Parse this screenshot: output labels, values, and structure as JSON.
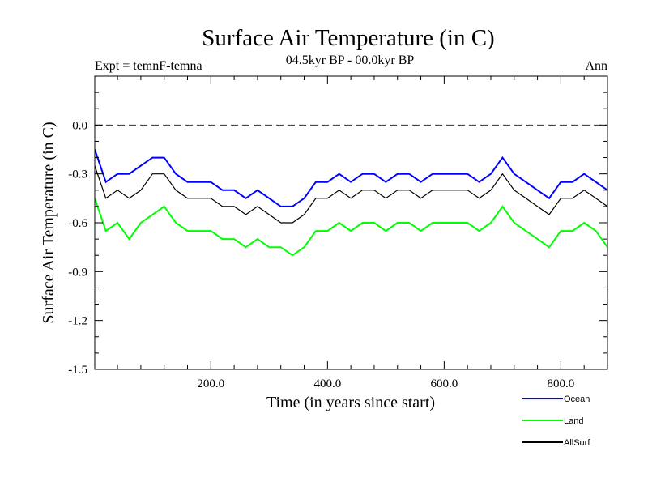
{
  "chart_data": {
    "type": "line",
    "title": "Surface Air Temperature (in C)",
    "subtitle": "04.5kyr BP - 00.0kyr BP",
    "left_label": "Expt = temnF-temna",
    "right_label": "Ann",
    "xlabel": "Time (in years since start)",
    "ylabel": "Surface Air Temperature (in C)",
    "xlim": [
      1,
      880
    ],
    "ylim": [
      -1.5,
      0.3
    ],
    "x_ticks": [
      200,
      400,
      600,
      800
    ],
    "x_tick_labels": [
      "200.0",
      "400.0",
      "600.0",
      "800.0"
    ],
    "y_ticks": [
      0.0,
      -0.3,
      -0.6,
      -0.9,
      -1.2,
      -1.5
    ],
    "y_tick_labels": [
      "0.0",
      "-0.3",
      "-0.6",
      "-0.9",
      "-1.2",
      "-1.5"
    ],
    "reference_line": {
      "y": 0.0,
      "style": "dashed"
    },
    "legend_position": "bottom-right",
    "series": [
      {
        "name": "Ocean",
        "color": "#0000ff",
        "x": [
          1,
          20,
          40,
          60,
          80,
          100,
          120,
          140,
          160,
          180,
          200,
          220,
          240,
          260,
          280,
          300,
          320,
          340,
          360,
          380,
          400,
          420,
          440,
          460,
          480,
          500,
          520,
          540,
          560,
          580,
          600,
          620,
          640,
          660,
          680,
          700,
          720,
          740,
          760,
          780,
          800,
          820,
          840,
          860,
          880
        ],
        "values": [
          -0.15,
          -0.35,
          -0.3,
          -0.3,
          -0.25,
          -0.2,
          -0.2,
          -0.3,
          -0.35,
          -0.35,
          -0.35,
          -0.4,
          -0.4,
          -0.45,
          -0.4,
          -0.45,
          -0.5,
          -0.5,
          -0.45,
          -0.35,
          -0.35,
          -0.3,
          -0.35,
          -0.3,
          -0.3,
          -0.35,
          -0.3,
          -0.3,
          -0.35,
          -0.3,
          -0.3,
          -0.3,
          -0.3,
          -0.35,
          -0.3,
          -0.2,
          -0.3,
          -0.35,
          -0.4,
          -0.45,
          -0.35,
          -0.35,
          -0.3,
          -0.35,
          -0.4
        ]
      },
      {
        "name": "Land",
        "color": "#00ff00",
        "x": [
          1,
          20,
          40,
          60,
          80,
          100,
          120,
          140,
          160,
          180,
          200,
          220,
          240,
          260,
          280,
          300,
          320,
          340,
          360,
          380,
          400,
          420,
          440,
          460,
          480,
          500,
          520,
          540,
          560,
          580,
          600,
          620,
          640,
          660,
          680,
          700,
          720,
          740,
          760,
          780,
          800,
          820,
          840,
          860,
          880
        ],
        "values": [
          -0.45,
          -0.65,
          -0.6,
          -0.7,
          -0.6,
          -0.55,
          -0.5,
          -0.6,
          -0.65,
          -0.65,
          -0.65,
          -0.7,
          -0.7,
          -0.75,
          -0.7,
          -0.75,
          -0.75,
          -0.8,
          -0.75,
          -0.65,
          -0.65,
          -0.6,
          -0.65,
          -0.6,
          -0.6,
          -0.65,
          -0.6,
          -0.6,
          -0.65,
          -0.6,
          -0.6,
          -0.6,
          -0.6,
          -0.65,
          -0.6,
          -0.5,
          -0.6,
          -0.65,
          -0.7,
          -0.75,
          -0.65,
          -0.65,
          -0.6,
          -0.65,
          -0.75
        ]
      },
      {
        "name": "AllSurf",
        "color": "#000000",
        "x": [
          1,
          20,
          40,
          60,
          80,
          100,
          120,
          140,
          160,
          180,
          200,
          220,
          240,
          260,
          280,
          300,
          320,
          340,
          360,
          380,
          400,
          420,
          440,
          460,
          480,
          500,
          520,
          540,
          560,
          580,
          600,
          620,
          640,
          660,
          680,
          700,
          720,
          740,
          760,
          780,
          800,
          820,
          840,
          860,
          880
        ],
        "values": [
          -0.25,
          -0.45,
          -0.4,
          -0.45,
          -0.4,
          -0.3,
          -0.3,
          -0.4,
          -0.45,
          -0.45,
          -0.45,
          -0.5,
          -0.5,
          -0.55,
          -0.5,
          -0.55,
          -0.6,
          -0.6,
          -0.55,
          -0.45,
          -0.45,
          -0.4,
          -0.45,
          -0.4,
          -0.4,
          -0.45,
          -0.4,
          -0.4,
          -0.45,
          -0.4,
          -0.4,
          -0.4,
          -0.4,
          -0.45,
          -0.4,
          -0.3,
          -0.4,
          -0.45,
          -0.5,
          -0.55,
          -0.45,
          -0.45,
          -0.4,
          -0.45,
          -0.5
        ]
      }
    ]
  }
}
